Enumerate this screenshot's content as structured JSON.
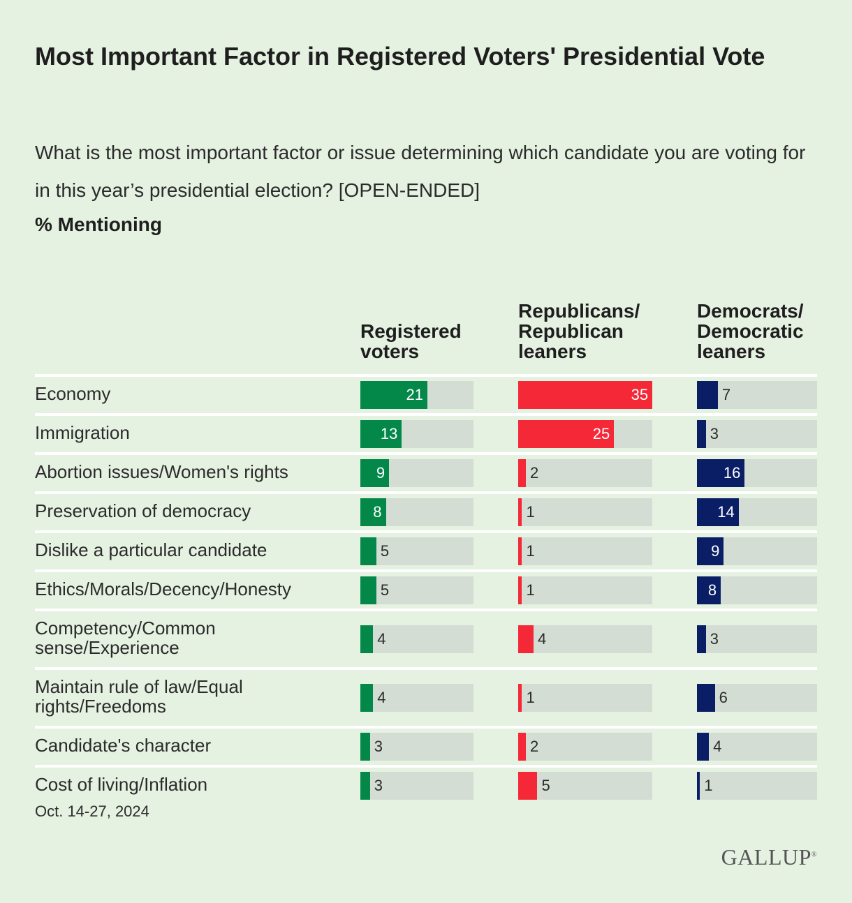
{
  "colors": {
    "background": "#e5f1e1",
    "track": "#d4ddd4",
    "registered": "#03884a",
    "republicans": "#f42837",
    "democrats": "#0a1e66"
  },
  "chart_data": {
    "type": "bar",
    "title": "Most Important Factor in Registered Voters' Presidential Vote",
    "subtitle": "What is the most important factor or issue determining which candidate you are voting for in this year’s presidential election? [OPEN-ENDED]",
    "unit_label": "% Mentioning",
    "xlim": [
      0,
      100
    ],
    "categories": [
      "Economy",
      "Immigration",
      "Abortion issues/Women's rights",
      "Preservation of democracy",
      "Dislike a particular candidate",
      "Ethics/Morals/Decency/Honesty",
      "Competency/Common sense/Experience",
      "Maintain rule of law/Equal rights/Freedoms",
      "Candidate's character",
      "Cost of living/Inflation"
    ],
    "series": [
      {
        "name": "Registered voters",
        "values": [
          21,
          13,
          9,
          8,
          5,
          5,
          4,
          4,
          3,
          3
        ]
      },
      {
        "name": "Republicans/ Republican leaners",
        "values": [
          35,
          25,
          2,
          1,
          1,
          1,
          4,
          1,
          2,
          5
        ]
      },
      {
        "name": "Democrats/ Democratic leaners",
        "values": [
          7,
          3,
          16,
          14,
          9,
          8,
          3,
          6,
          4,
          1
        ]
      }
    ]
  },
  "footnote": "Oct. 14-27, 2024",
  "logo_text": "GALLUP"
}
